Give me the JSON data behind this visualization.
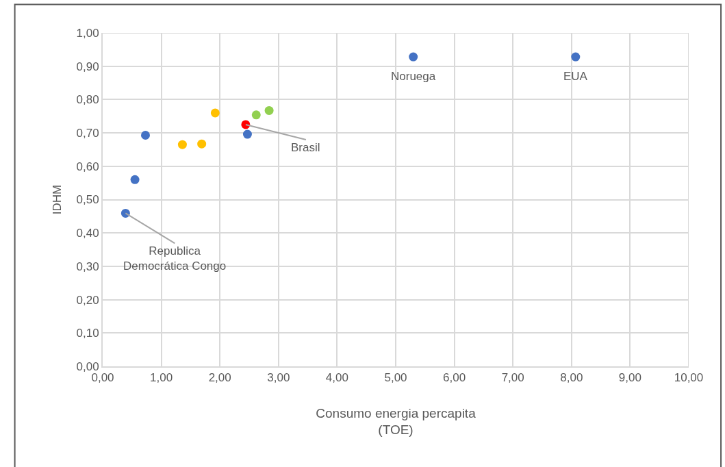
{
  "chart_data": {
    "type": "scatter",
    "xlabel": "Consumo energia percapita\n(TOE)",
    "ylabel": "IDHM",
    "series": [
      {
        "color": "#4472c4",
        "x": [
          0.39,
          0.55,
          0.73,
          2.47,
          5.3,
          8.07
        ],
        "values": [
          0.459,
          0.56,
          0.693,
          0.696,
          0.928,
          0.928
        ]
      },
      {
        "color": "#ffc000",
        "x": [
          1.36,
          1.69,
          1.92
        ],
        "values": [
          0.665,
          0.667,
          0.76
        ]
      },
      {
        "color": "#92d050",
        "x": [
          2.62,
          2.84
        ],
        "values": [
          0.754,
          0.767
        ]
      },
      {
        "color": "#ff0000",
        "x": [
          2.44
        ],
        "values": [
          0.725
        ]
      }
    ],
    "annotations": [
      {
        "text": "Noruega",
        "x": 5.3,
        "y": 0.928
      },
      {
        "text": "EUA",
        "x": 8.07,
        "y": 0.928
      },
      {
        "text": "Brasil",
        "x": 2.44,
        "y": 0.725
      },
      {
        "text": "Republica\nDemocrática Congo",
        "x": 0.39,
        "y": 0.459
      }
    ],
    "xlim": [
      0,
      10
    ],
    "xticks": [
      {
        "value": 0,
        "label": "0,00"
      },
      {
        "value": 1,
        "label": "1,00"
      },
      {
        "value": 2,
        "label": "2,00"
      },
      {
        "value": 3,
        "label": "3,00"
      },
      {
        "value": 4,
        "label": "4,00"
      },
      {
        "value": 5,
        "label": "5,00"
      },
      {
        "value": 6,
        "label": "6,00"
      },
      {
        "value": 7,
        "label": "7,00"
      },
      {
        "value": 8,
        "label": "8,00"
      },
      {
        "value": 9,
        "label": "9,00"
      },
      {
        "value": 10,
        "label": "10,00"
      }
    ],
    "ylim": [
      0,
      1
    ],
    "yticks": [
      {
        "value": 0,
        "label": "0,00"
      },
      {
        "value": 0.1,
        "label": "0,10"
      },
      {
        "value": 0.2,
        "label": "0,20"
      },
      {
        "value": 0.3,
        "label": "0,30"
      },
      {
        "value": 0.4,
        "label": "0,40"
      },
      {
        "value": 0.5,
        "label": "0,50"
      },
      {
        "value": 0.6,
        "label": "0,60"
      },
      {
        "value": 0.7,
        "label": "0,70"
      },
      {
        "value": 0.8,
        "label": "0,80"
      },
      {
        "value": 0.9,
        "label": "0,90"
      },
      {
        "value": 1.0,
        "label": "1,00"
      }
    ],
    "grid": true,
    "marker": "circle"
  }
}
